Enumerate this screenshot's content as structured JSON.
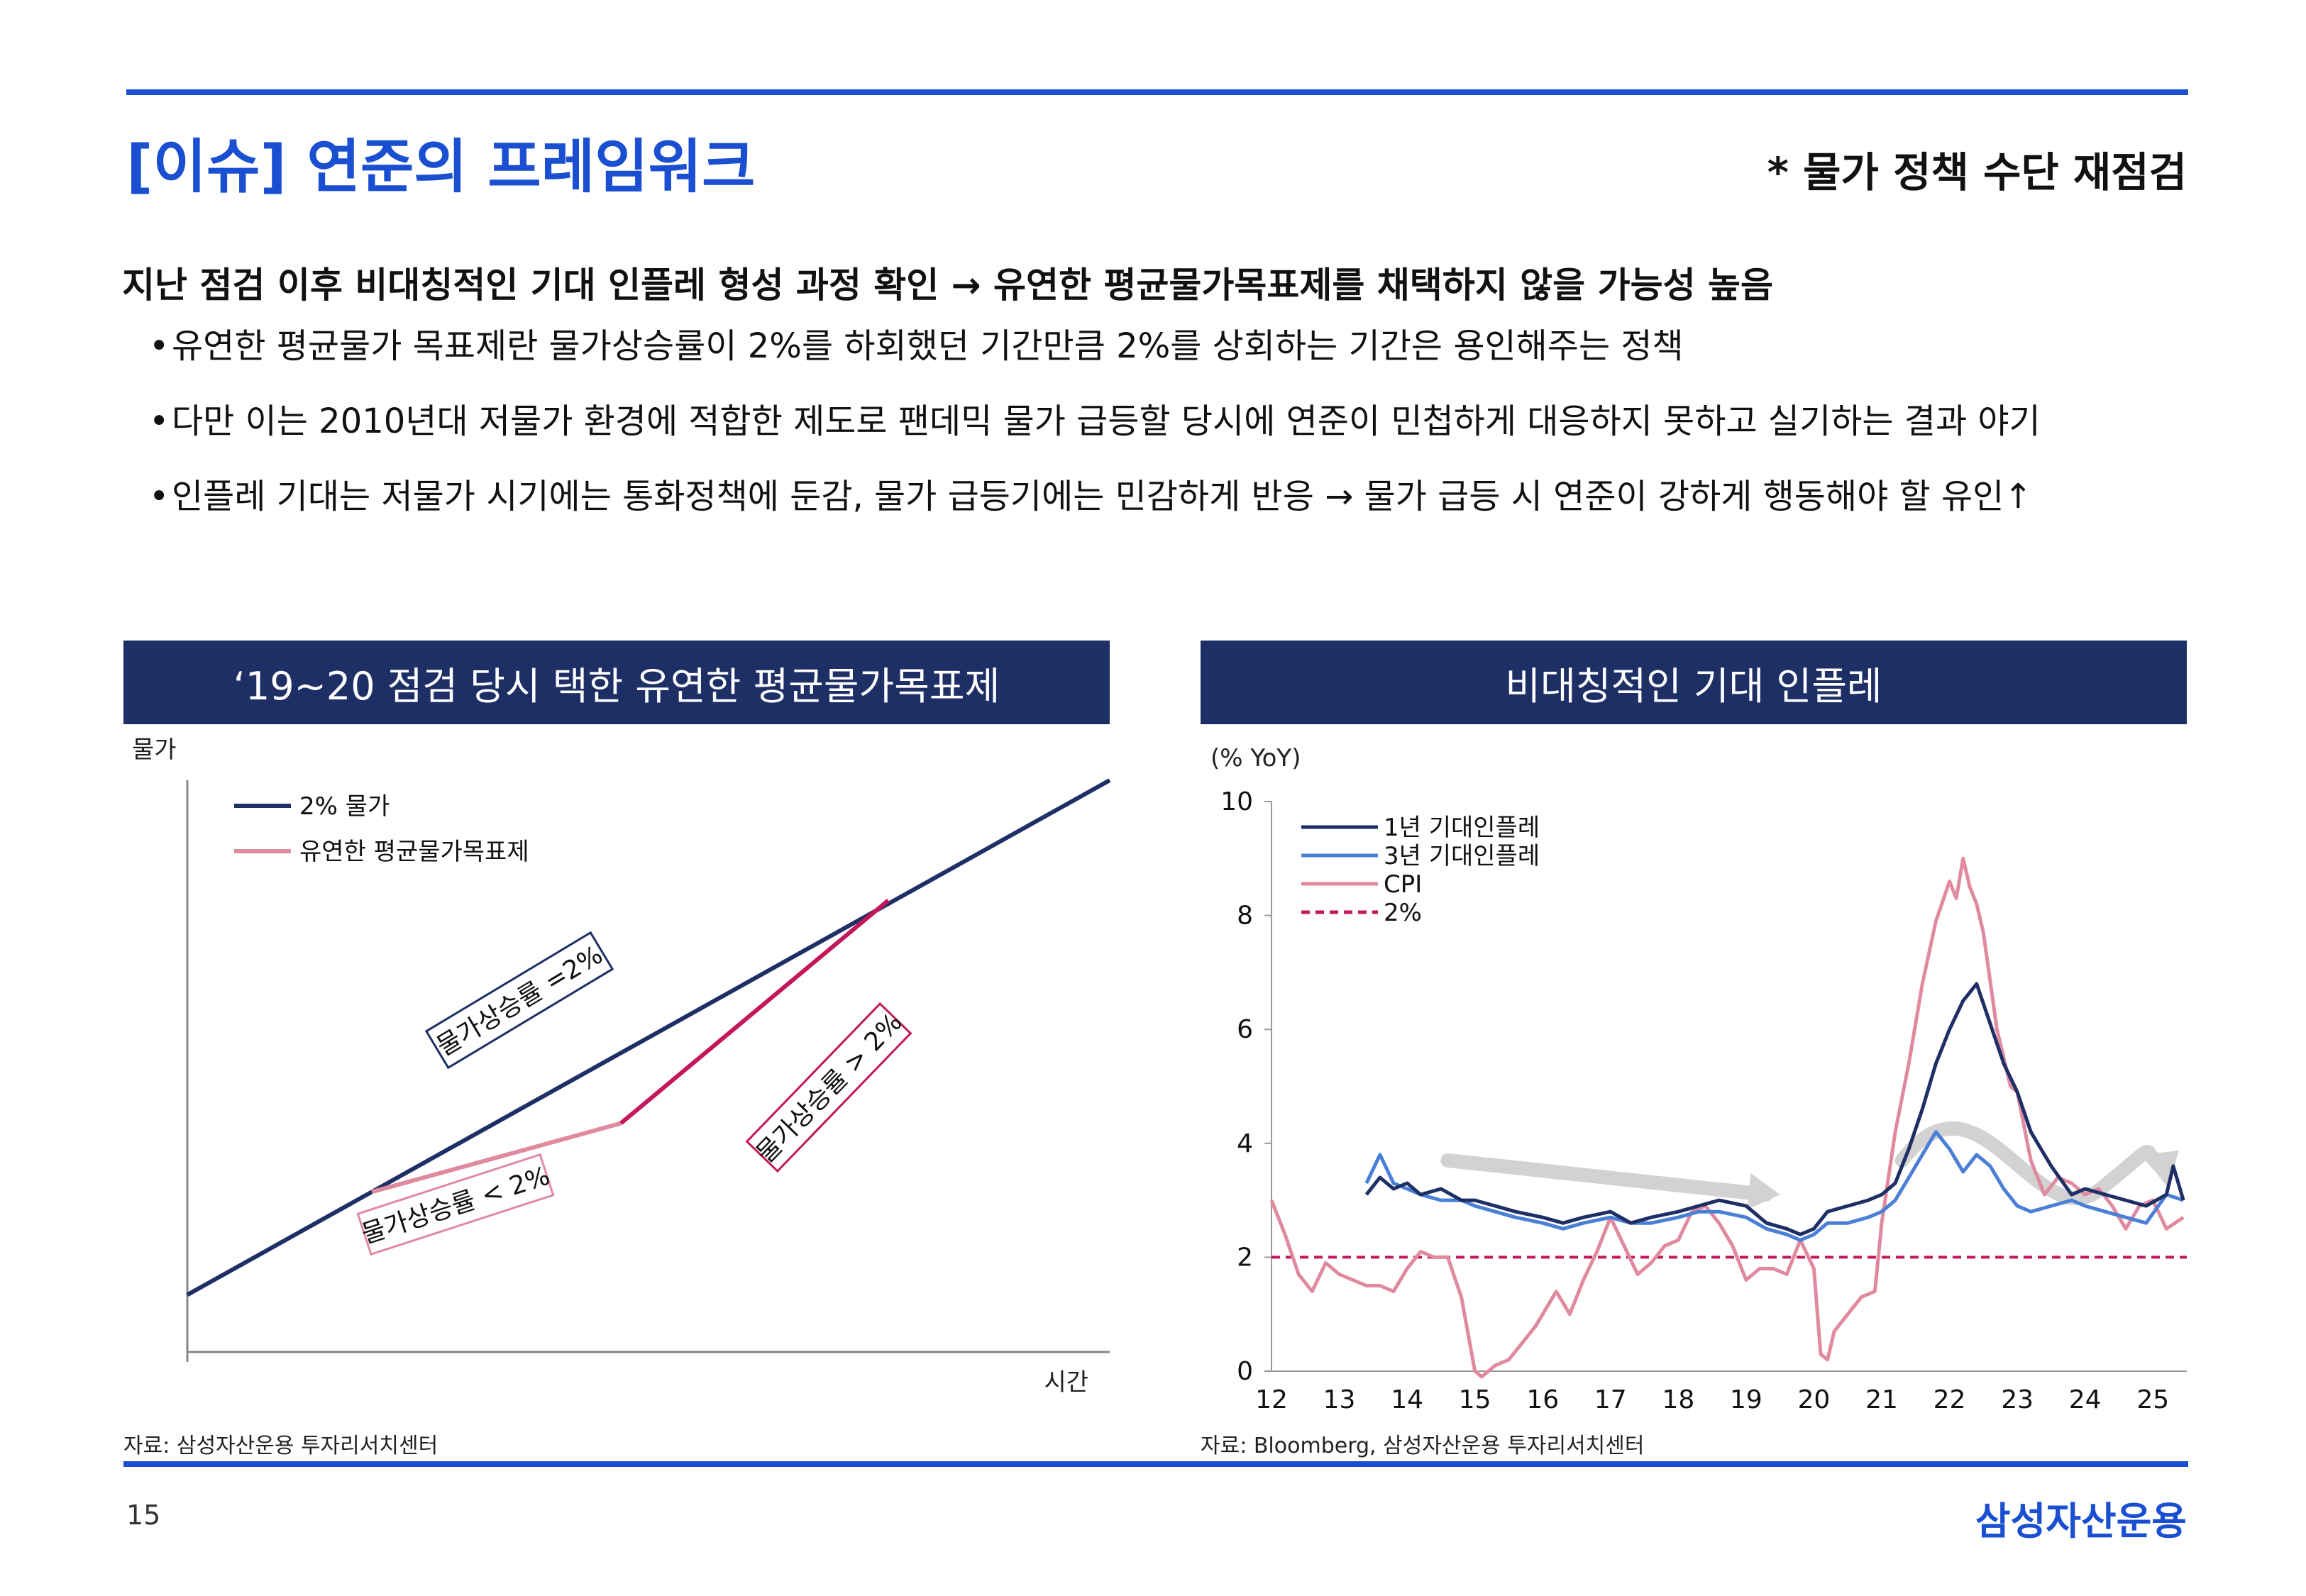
{
  "header": {
    "title": "[이슈] 연준의 프레임워크",
    "subtitle": "* 물가 정책 수단 재점검"
  },
  "lead": "지난 점검 이후 비대칭적인 기대 인플레 형성 과정 확인 → 유연한 평균물가목표제를 채택하지 않을 가능성 높음",
  "bullets": [
    "유연한 평균물가 목표제란 물가상승률이 2%를 하회했던 기간만큼 2%를 상회하는 기간은 용인해주는 정책",
    "다만 이는 2010년대 저물가 환경에 적합한 제도로 팬데믹 물가 급등할 당시에 연준이 민첩하게 대응하지 못하고 실기하는 결과 야기",
    "인플레 기대는 저물가 시기에는 통화정책에 둔감, 물가 급등기에는 민감하게 반응 → 물가 급등 시 연준이 강하게 행동해야 할 유인↑"
  ],
  "bullet_symbol": "•",
  "left_panel": {
    "title": "‘19~20 점검 당시 택한 유연한 평균물가목표제",
    "source": "자료: 삼성자산운용 투자리서치센터"
  },
  "right_panel": {
    "title": "비대칭적인 기대 인플레",
    "source": "자료: Bloomberg, 삼성자산운용 투자리서치센터"
  },
  "footer": {
    "page_number": "15",
    "brand": "삼성자산운용"
  },
  "colors": {
    "accent": "#1a4fd1",
    "navy": "#1e2f66",
    "pink": "#e08aa0",
    "magenta": "#c2185b",
    "blue": "#4a7fd6"
  },
  "chart_data": [
    {
      "type": "line",
      "title": "‘19~20 점검 당시 택한 유연한 평균물가목표제",
      "ylabel": "물가",
      "xlabel": "시간",
      "legend": [
        "2% 물가",
        "유연한 평균물가목표제"
      ],
      "legend_position": "top-left",
      "series": [
        {
          "name": "2% 물가",
          "x": [
            0,
            100
          ],
          "y": [
            10,
            100
          ]
        },
        {
          "name": "유연한 평균물가목표제",
          "x": [
            20,
            47,
            76
          ],
          "y": [
            28,
            40,
            79
          ]
        }
      ],
      "annotations": [
        "물가상승률 =2%",
        "물가상승률 > 2%",
        "물가상승률 < 2%"
      ]
    },
    {
      "type": "line",
      "title": "비대칭적인 기대 인플레",
      "ylabel": "(% YoY)",
      "ylim": [
        0,
        10
      ],
      "yticks": [
        "0",
        "2",
        "4",
        "6",
        "8",
        "10"
      ],
      "xlim": [
        12,
        25.5
      ],
      "xticks": [
        "12",
        "13",
        "14",
        "15",
        "16",
        "17",
        "18",
        "19",
        "20",
        "21",
        "22",
        "23",
        "24",
        "25"
      ],
      "legend_position": "top-left",
      "series": [
        {
          "name": "1년 기대인플레",
          "x": [
            13.4,
            13.6,
            13.8,
            14,
            14.2,
            14.5,
            14.8,
            15,
            15.3,
            15.6,
            16,
            16.3,
            16.6,
            17,
            17.3,
            17.6,
            18,
            18.3,
            18.6,
            19,
            19.3,
            19.6,
            19.8,
            20,
            20.2,
            20.5,
            20.8,
            21,
            21.2,
            21.4,
            21.6,
            21.8,
            22,
            22.2,
            22.4,
            22.6,
            22.8,
            23,
            23.2,
            23.5,
            23.8,
            24,
            24.3,
            24.6,
            24.9,
            25.2,
            25.3,
            25.45
          ],
          "y": [
            3.1,
            3.4,
            3.2,
            3.3,
            3.1,
            3.2,
            3.0,
            3.0,
            2.9,
            2.8,
            2.7,
            2.6,
            2.7,
            2.8,
            2.6,
            2.7,
            2.8,
            2.9,
            3.0,
            2.9,
            2.6,
            2.5,
            2.4,
            2.5,
            2.8,
            2.9,
            3.0,
            3.1,
            3.3,
            3.9,
            4.6,
            5.4,
            6.0,
            6.5,
            6.8,
            6.1,
            5.4,
            4.9,
            4.2,
            3.6,
            3.1,
            3.2,
            3.1,
            3.0,
            2.9,
            3.1,
            3.6,
            3.0
          ]
        },
        {
          "name": "3년 기대인플레",
          "x": [
            13.4,
            13.6,
            13.8,
            14,
            14.2,
            14.5,
            14.8,
            15,
            15.3,
            15.6,
            16,
            16.3,
            16.6,
            17,
            17.3,
            17.6,
            18,
            18.3,
            18.6,
            19,
            19.3,
            19.6,
            19.8,
            20,
            20.2,
            20.5,
            20.8,
            21,
            21.2,
            21.4,
            21.6,
            21.8,
            22,
            22.2,
            22.4,
            22.6,
            22.8,
            23,
            23.2,
            23.5,
            23.8,
            24,
            24.3,
            24.6,
            24.9,
            25.2,
            25.45
          ],
          "y": [
            3.3,
            3.8,
            3.3,
            3.2,
            3.1,
            3.0,
            3.0,
            2.9,
            2.8,
            2.7,
            2.6,
            2.5,
            2.6,
            2.7,
            2.6,
            2.6,
            2.7,
            2.8,
            2.8,
            2.7,
            2.5,
            2.4,
            2.3,
            2.4,
            2.6,
            2.6,
            2.7,
            2.8,
            3.0,
            3.4,
            3.8,
            4.2,
            3.9,
            3.5,
            3.8,
            3.6,
            3.2,
            2.9,
            2.8,
            2.9,
            3.0,
            2.9,
            2.8,
            2.7,
            2.6,
            3.1,
            3.0
          ]
        },
        {
          "name": "CPI",
          "x": [
            12,
            12.2,
            12.4,
            12.6,
            12.8,
            13,
            13.2,
            13.4,
            13.6,
            13.8,
            14,
            14.2,
            14.4,
            14.6,
            14.8,
            15,
            15.1,
            15.3,
            15.5,
            15.7,
            15.9,
            16,
            16.2,
            16.4,
            16.6,
            16.8,
            17,
            17.2,
            17.4,
            17.6,
            17.8,
            18,
            18.2,
            18.4,
            18.6,
            18.8,
            19,
            19.2,
            19.4,
            19.6,
            19.8,
            20,
            20.1,
            20.2,
            20.3,
            20.5,
            20.7,
            20.9,
            21,
            21.2,
            21.4,
            21.6,
            21.8,
            22,
            22.1,
            22.2,
            22.3,
            22.4,
            22.5,
            22.7,
            22.9,
            23,
            23.2,
            23.4,
            23.6,
            23.8,
            24,
            24.2,
            24.4,
            24.6,
            24.8,
            25,
            25.2,
            25.45
          ],
          "y": [
            3.0,
            2.4,
            1.7,
            1.4,
            1.9,
            1.7,
            1.6,
            1.5,
            1.5,
            1.4,
            1.8,
            2.1,
            2.0,
            2.0,
            1.3,
            0.0,
            -0.1,
            0.1,
            0.2,
            0.5,
            0.8,
            1.0,
            1.4,
            1.0,
            1.6,
            2.1,
            2.7,
            2.2,
            1.7,
            1.9,
            2.2,
            2.3,
            2.8,
            2.9,
            2.6,
            2.2,
            1.6,
            1.8,
            1.8,
            1.7,
            2.3,
            1.8,
            0.3,
            0.2,
            0.7,
            1.0,
            1.3,
            1.4,
            2.6,
            4.2,
            5.4,
            6.8,
            7.9,
            8.6,
            8.3,
            9.0,
            8.5,
            8.2,
            7.7,
            6.0,
            5.0,
            4.9,
            3.7,
            3.1,
            3.4,
            3.3,
            3.1,
            3.2,
            2.9,
            2.5,
            2.9,
            3.0,
            2.5,
            2.7
          ]
        },
        {
          "name": "2%",
          "style": "dashed",
          "x": [
            12,
            25.5
          ],
          "y": [
            2,
            2
          ]
        }
      ],
      "trend_arrows": [
        {
          "from": [
            14.6,
            3.7
          ],
          "to": [
            19.5,
            3.1
          ]
        },
        {
          "from": [
            21.3,
            3.7
          ],
          "to": [
            25.3,
            3.5
          ]
        }
      ]
    }
  ]
}
